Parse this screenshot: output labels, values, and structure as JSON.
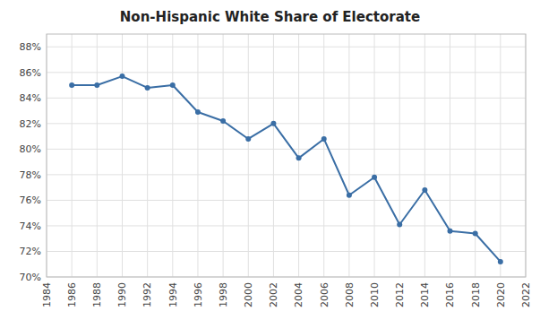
{
  "chart_data": {
    "type": "line",
    "title": "Non-Hispanic White Share of Electorate",
    "x": [
      1986,
      1988,
      1990,
      1992,
      1994,
      1996,
      1998,
      2000,
      2002,
      2004,
      2006,
      2008,
      2010,
      2012,
      2014,
      2016,
      2018,
      2020
    ],
    "values": [
      0.85,
      0.85,
      0.857,
      0.848,
      0.85,
      0.829,
      0.822,
      0.808,
      0.82,
      0.793,
      0.808,
      0.764,
      0.778,
      0.741,
      0.768,
      0.736,
      0.734,
      0.712
    ],
    "color": "#3A6EA5",
    "marker": "circle",
    "xlim": [
      1984,
      2022
    ],
    "xticks": [
      1984,
      1986,
      1988,
      1990,
      1992,
      1994,
      1996,
      1998,
      2000,
      2002,
      2004,
      2006,
      2008,
      2010,
      2012,
      2014,
      2016,
      2018,
      2020,
      2022
    ],
    "ylim": [
      0.7,
      0.89
    ],
    "yticks": [
      {
        "value": 0.7,
        "label": "70%"
      },
      {
        "value": 0.72,
        "label": "72%"
      },
      {
        "value": 0.74,
        "label": "74%"
      },
      {
        "value": 0.76,
        "label": "76%"
      },
      {
        "value": 0.78,
        "label": "78%"
      },
      {
        "value": 0.8,
        "label": "80%"
      },
      {
        "value": 0.82,
        "label": "82%"
      },
      {
        "value": 0.84,
        "label": "84%"
      },
      {
        "value": 0.86,
        "label": "86%"
      },
      {
        "value": 0.88,
        "label": "88%"
      }
    ],
    "grid": true
  }
}
